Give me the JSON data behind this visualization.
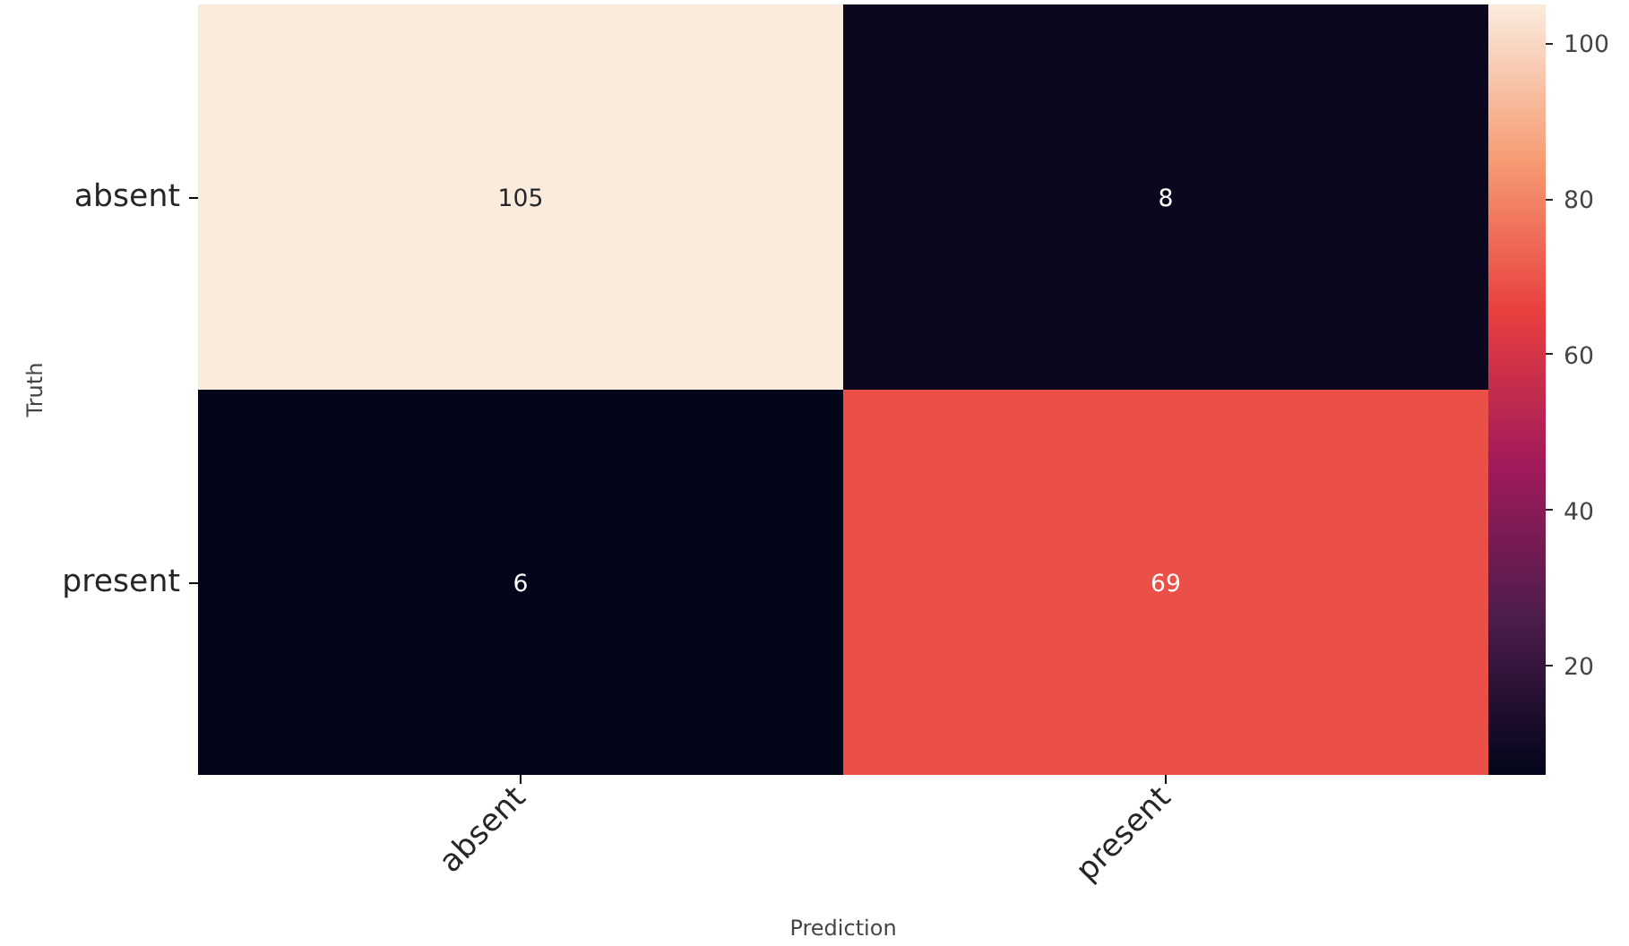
{
  "chart_data": {
    "type": "heatmap",
    "xlabel": "Prediction",
    "ylabel": "Truth",
    "categories": [
      "absent",
      "present"
    ],
    "y_categories": [
      "absent",
      "present"
    ],
    "cells": [
      [
        105,
        8
      ],
      [
        6,
        69
      ]
    ],
    "data_labels": true,
    "clim": [
      6,
      105
    ],
    "cticks": [
      20,
      40,
      60,
      80,
      100
    ]
  }
}
